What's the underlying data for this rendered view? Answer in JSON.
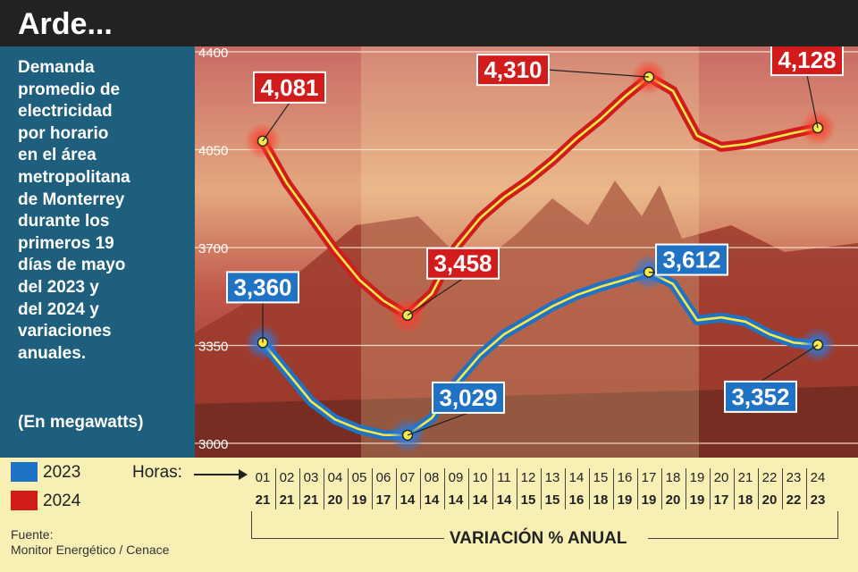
{
  "header": {
    "title": "Arde..."
  },
  "panel": {
    "description": [
      "Demanda",
      "promedio de",
      "electricidad",
      "por horario",
      "en el área",
      "metropolitana",
      "de Monterrey",
      "durante los",
      "primeros 19",
      "días de mayo",
      "del 2023 y",
      "del 2024 y",
      "variaciones",
      "anuales."
    ],
    "unit": "(En megawatts)"
  },
  "legend": [
    {
      "label": "2023",
      "color": "#1f72c4"
    },
    {
      "label": "2024",
      "color": "#d21c1c"
    }
  ],
  "axis": {
    "horas_label": "Horas:",
    "variation_label": "VARIACIÓN % ANUAL"
  },
  "source": {
    "line1": "Fuente:",
    "line2": "Monitor Energético / Cenace"
  },
  "chart_data": {
    "type": "line",
    "x": [
      "01",
      "02",
      "03",
      "04",
      "05",
      "06",
      "07",
      "08",
      "09",
      "10",
      "11",
      "12",
      "13",
      "14",
      "15",
      "16",
      "17",
      "18",
      "19",
      "20",
      "21",
      "22",
      "23",
      "24"
    ],
    "ylim": [
      3000,
      4400
    ],
    "yticks": [
      "4400",
      "4050",
      "3700",
      "3350",
      "3000"
    ],
    "ytick_values": [
      4400,
      4050,
      3700,
      3350,
      3000
    ],
    "series": [
      {
        "name": "2023",
        "color": "#1f72c4",
        "values": [
          3360,
          3255,
          3150,
          3085,
          3050,
          3030,
          3029,
          3090,
          3215,
          3315,
          3390,
          3440,
          3490,
          3530,
          3560,
          3585,
          3612,
          3570,
          3440,
          3450,
          3435,
          3390,
          3360,
          3352
        ]
      },
      {
        "name": "2024",
        "color": "#d21c1c",
        "values": [
          4081,
          3930,
          3810,
          3690,
          3585,
          3510,
          3458,
          3535,
          3700,
          3805,
          3880,
          3940,
          4010,
          4090,
          4160,
          4240,
          4310,
          4260,
          4100,
          4060,
          4070,
          4090,
          4110,
          4128
        ]
      }
    ],
    "data_labels": [
      {
        "text": "4,081",
        "series": "2024",
        "point": 0
      },
      {
        "text": "3,458",
        "series": "2024",
        "point": 6
      },
      {
        "text": "4,310",
        "series": "2024",
        "point": 16
      },
      {
        "text": "4,128",
        "series": "2024",
        "point": 23
      },
      {
        "text": "3,360",
        "series": "2023",
        "point": 0
      },
      {
        "text": "3,029",
        "series": "2023",
        "point": 6
      },
      {
        "text": "3,612",
        "series": "2023",
        "point": 16
      },
      {
        "text": "3,352",
        "series": "2023",
        "point": 23
      }
    ],
    "variation": [
      "21",
      "21",
      "21",
      "20",
      "19",
      "17",
      "14",
      "14",
      "14",
      "14",
      "14",
      "15",
      "15",
      "16",
      "18",
      "19",
      "19",
      "20",
      "19",
      "17",
      "18",
      "20",
      "22",
      "23"
    ]
  }
}
